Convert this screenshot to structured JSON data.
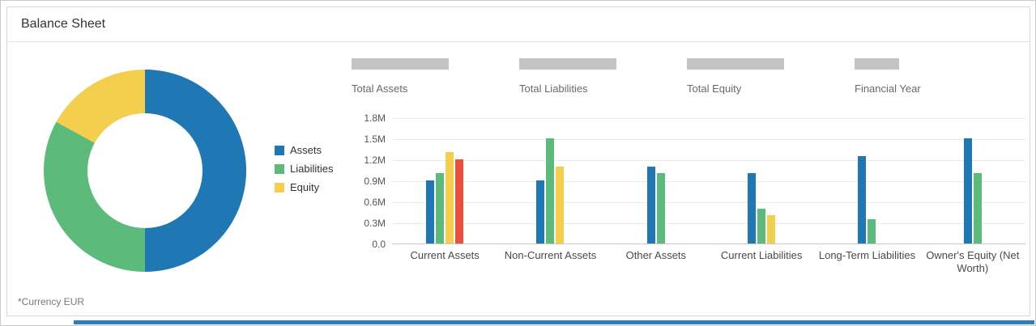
{
  "header": {
    "title": "Balance Sheet"
  },
  "footnote": "*Currency EUR",
  "legend": {
    "items": [
      {
        "label": "Assets",
        "color": "#1F77B4"
      },
      {
        "label": "Liabilities",
        "color": "#5CBA7A"
      },
      {
        "label": "Equity",
        "color": "#F3CF4D"
      }
    ]
  },
  "kpis": [
    {
      "label": "Total Assets"
    },
    {
      "label": "Total Liabilities"
    },
    {
      "label": "Total Equity"
    },
    {
      "label": "Financial Year"
    }
  ],
  "colors": {
    "skeleton": "#C4C4C4",
    "accent_strip": "#2E7DBE"
  },
  "chart_data": [
    {
      "type": "pie",
      "donut": true,
      "labels": [
        "Assets",
        "Liabilities",
        "Equity"
      ],
      "values_pct": [
        50,
        33,
        17
      ],
      "colors": [
        "#1F77B4",
        "#5CBA7A",
        "#F3CF4D"
      ]
    },
    {
      "type": "bar",
      "title": "",
      "categories": [
        "Current Assets",
        "Non-Current Assets",
        "Other Assets",
        "Current Liabilities",
        "Long-Term Liabilities",
        "Owner's Equity (Net Worth)"
      ],
      "series": [
        {
          "color": "#1F77B4",
          "values": [
            0.9,
            0.9,
            1.1,
            1.0,
            1.25,
            1.5
          ]
        },
        {
          "color": "#5CBA7A",
          "values": [
            1.0,
            1.5,
            1.0,
            0.5,
            0.35,
            1.0
          ]
        },
        {
          "color": "#F3CF4D",
          "values": [
            1.3,
            1.1,
            null,
            0.4,
            null,
            null
          ]
        },
        {
          "color": "#E8513D",
          "values": [
            1.2,
            null,
            null,
            null,
            null,
            null
          ]
        }
      ],
      "unit": "M",
      "y_ticks": [
        "1.8M",
        "1.5M",
        "1.2M",
        "0.9M",
        "0.6M",
        "0.3M",
        "0.0"
      ],
      "ylim": [
        0,
        1.8
      ],
      "grid": true,
      "legend_position": "left"
    }
  ]
}
